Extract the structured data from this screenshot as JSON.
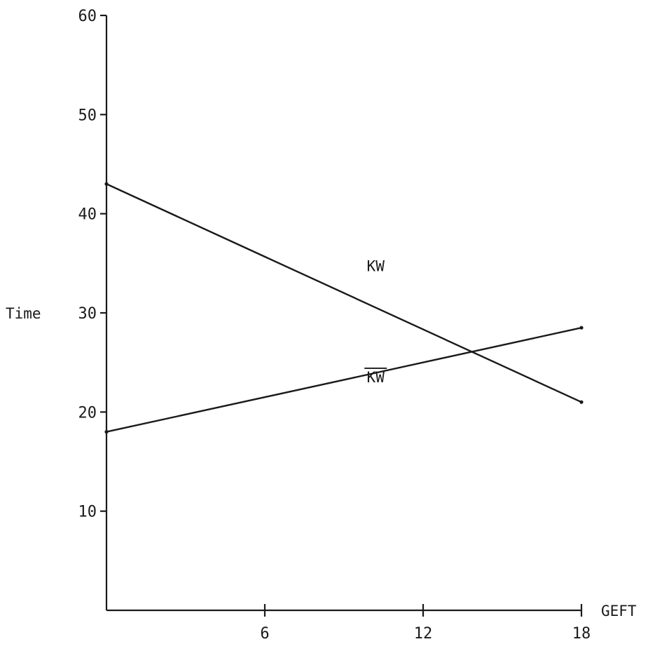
{
  "chart_data": {
    "type": "line",
    "title": "",
    "xlabel": "GEFT",
    "ylabel": "Time",
    "xlim": [
      0,
      18
    ],
    "ylim": [
      0,
      60
    ],
    "x_ticks": [
      6,
      12,
      18
    ],
    "y_ticks": [
      10,
      20,
      30,
      40,
      50,
      60
    ],
    "grid": false,
    "series": [
      {
        "name": "KW",
        "overline": false,
        "x": [
          0,
          18
        ],
        "y": [
          43,
          21
        ]
      },
      {
        "name": "KW",
        "overline": true,
        "x": [
          0,
          18
        ],
        "y": [
          18,
          28.5
        ]
      }
    ]
  }
}
